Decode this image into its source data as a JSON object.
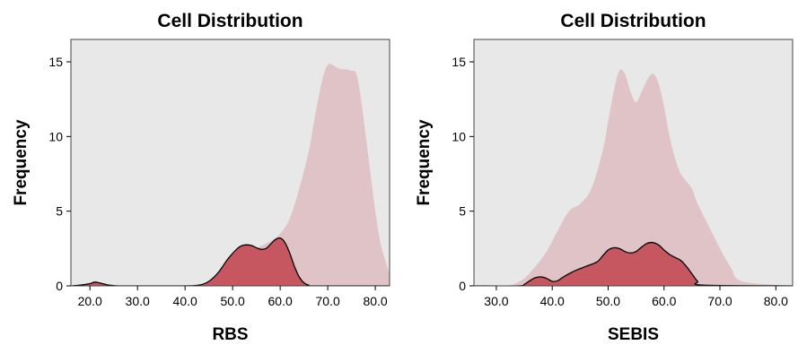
{
  "chart_data": [
    {
      "type": "area",
      "title": "Cell Distribution",
      "xlabel": "RBS",
      "ylabel": "Frequency",
      "xlim": [
        16,
        83
      ],
      "ylim": [
        0,
        16.5
      ],
      "xticks": [
        20,
        30,
        40,
        50,
        60,
        70,
        80
      ],
      "xtick_labels": [
        "20.0",
        "30.0",
        "40.0",
        "50.0",
        "60.0",
        "70.0",
        "80.0"
      ],
      "yticks": [
        0,
        5,
        10,
        15
      ],
      "ytick_labels": [
        "0",
        "5",
        "10",
        "15"
      ],
      "colors": {
        "background": "#e8e8e8",
        "total_fill": "#e0c3c6",
        "subset_fill": "#c65660",
        "subset_stroke": "#000000"
      },
      "series": [
        {
          "x": [
            16,
            40,
            45,
            50,
            55,
            58,
            60,
            62,
            64,
            66,
            67,
            68,
            69,
            70,
            71,
            72,
            73,
            74,
            75,
            76,
            77,
            78,
            79,
            80,
            81,
            82,
            83
          ],
          "values": [
            0,
            0,
            0.3,
            1.5,
            2.5,
            3.0,
            3.5,
            4.5,
            6.5,
            9.0,
            10.8,
            12.5,
            14.0,
            14.8,
            14.8,
            14.6,
            14.5,
            14.5,
            14.4,
            14.2,
            12.5,
            10.0,
            7.5,
            5.0,
            3.0,
            1.8,
            0.8
          ]
        },
        {
          "x": [
            16,
            18,
            20,
            21,
            22,
            24,
            26,
            30,
            40,
            43,
            45,
            47,
            49,
            51,
            52,
            53,
            54,
            55,
            56,
            57,
            58,
            59,
            60,
            61,
            62,
            63,
            64,
            65,
            66,
            67,
            83
          ],
          "values": [
            0,
            0.05,
            0.15,
            0.25,
            0.2,
            0.05,
            0,
            0,
            0,
            0.05,
            0.3,
            0.9,
            1.8,
            2.5,
            2.7,
            2.75,
            2.7,
            2.55,
            2.45,
            2.5,
            2.8,
            3.1,
            3.2,
            2.9,
            2.2,
            1.3,
            0.6,
            0.2,
            0.05,
            0,
            0
          ]
        }
      ]
    },
    {
      "type": "area",
      "title": "Cell Distribution",
      "xlabel": "SEBIS",
      "ylabel": "Frequency",
      "xlim": [
        26,
        83
      ],
      "ylim": [
        0,
        16.5
      ],
      "xticks": [
        30,
        40,
        50,
        60,
        70,
        80
      ],
      "xtick_labels": [
        "30.0",
        "40.0",
        "50.0",
        "60.0",
        "70.0",
        "80.0"
      ],
      "yticks": [
        0,
        5,
        10,
        15
      ],
      "ytick_labels": [
        "0",
        "5",
        "10",
        "15"
      ],
      "colors": {
        "background": "#e8e8e8",
        "total_fill": "#e0c3c6",
        "subset_fill": "#c65660",
        "subset_stroke": "#000000"
      },
      "series": [
        {
          "x": [
            26,
            31,
            33,
            35,
            37,
            39,
            41,
            43,
            45,
            47,
            49,
            50,
            51,
            52,
            53,
            54,
            55,
            56,
            57,
            58,
            59,
            60,
            61,
            62,
            63,
            64,
            65,
            66,
            68,
            70,
            72,
            74,
            83
          ],
          "values": [
            0,
            0,
            0.1,
            0.5,
            1.3,
            2.3,
            3.7,
            5.0,
            5.5,
            6.5,
            9.0,
            11.0,
            13.0,
            14.4,
            14.2,
            13.0,
            12.3,
            13.0,
            13.8,
            14.2,
            13.6,
            12.0,
            10.0,
            8.5,
            7.5,
            7.0,
            6.5,
            5.5,
            4.0,
            2.5,
            1.2,
            0.3,
            0
          ]
        },
        {
          "x": [
            26,
            34,
            35,
            36,
            37,
            38,
            39,
            40,
            41,
            42,
            44,
            46,
            48,
            49,
            50,
            51,
            52,
            53,
            54,
            55,
            56,
            57,
            58,
            59,
            60,
            61,
            62,
            63,
            64,
            65,
            66,
            67,
            83
          ],
          "values": [
            0,
            0,
            0.1,
            0.35,
            0.55,
            0.6,
            0.5,
            0.3,
            0.35,
            0.6,
            1.0,
            1.3,
            1.6,
            2.0,
            2.4,
            2.55,
            2.5,
            2.3,
            2.2,
            2.3,
            2.6,
            2.85,
            2.9,
            2.75,
            2.4,
            2.1,
            1.9,
            1.7,
            1.3,
            0.8,
            0.3,
            0.05,
            0
          ]
        }
      ]
    }
  ]
}
